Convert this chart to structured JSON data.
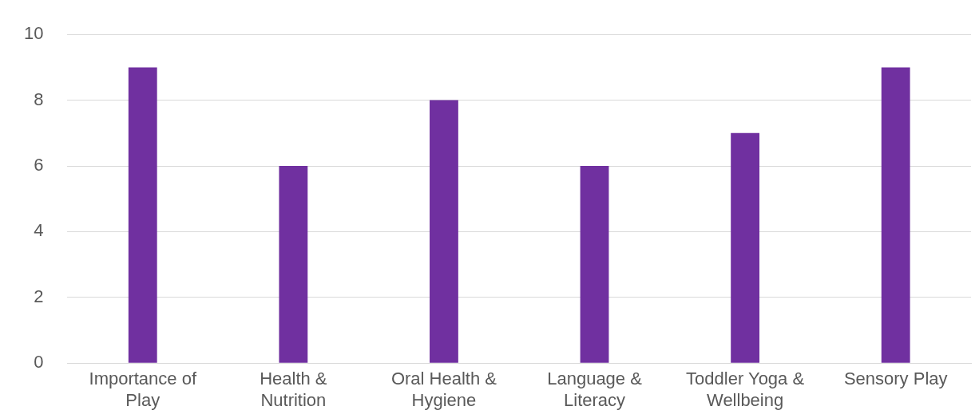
{
  "chart_data": {
    "type": "bar",
    "categories": [
      "Importance of Play",
      "Health & Nutrition",
      "Oral Health & Hygiene",
      "Language & Literacy",
      "Toddler Yoga & Wellbeing",
      "Sensory Play"
    ],
    "values": [
      9,
      6,
      8,
      6,
      7,
      9
    ],
    "color": "#7030a0",
    "ylim": [
      0,
      10
    ],
    "yticks": [
      0,
      2,
      4,
      6,
      8,
      10
    ],
    "grid": "y",
    "legend": false
  }
}
